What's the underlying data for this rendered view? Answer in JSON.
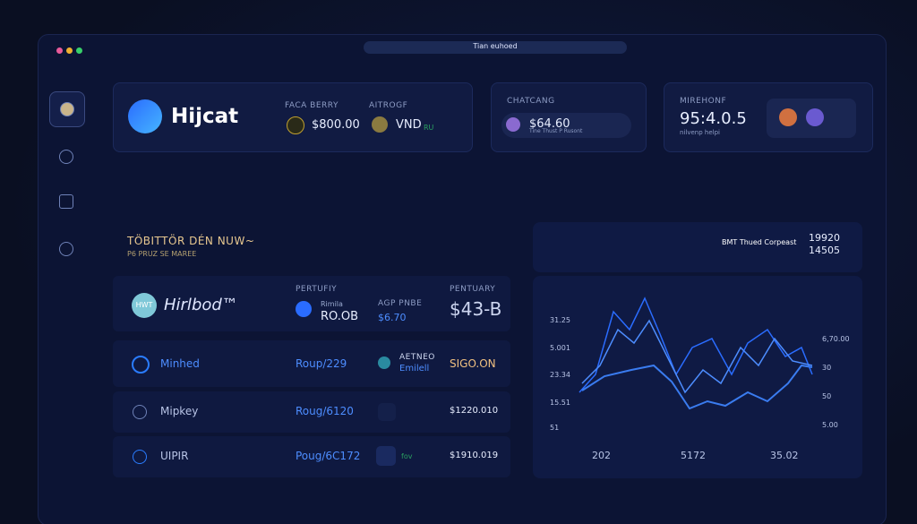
{
  "window": {
    "title": "Tian euhoed"
  },
  "cards": [
    {
      "brand": "Hijcat",
      "label_a": "FACA BERRY",
      "value_a": "$800.00",
      "label_b": "AITROGF",
      "value_b": "VND",
      "tag_b": "RU"
    },
    {
      "label": "CHATCANG",
      "value": "$64.60",
      "note": "Tine Thust P Rusont"
    },
    {
      "label": "MIREHONF",
      "value": "95:4.0.5",
      "note": "nilvenp helpi"
    }
  ],
  "section": {
    "title": "TÖBITTÖR DÉN NUW~",
    "subtitle": "P6 PRUZ SE MAREE"
  },
  "table": {
    "header": {
      "logo": "HWT",
      "brand": "Hirlbod™",
      "col1_label": "PERTUFIY",
      "col1_name": "Rimila",
      "col1_value": "RO.OB",
      "col2_label": "AGP PNBE",
      "col2_value": "$6.70",
      "col3_label": "PENTUARY",
      "col3_value": "$43-B"
    },
    "rows": [
      {
        "name": "Minhed",
        "route": "Roup/229",
        "meta_a": "AETNEO",
        "meta_b": "Emilell",
        "amount": "SIGO.ON"
      },
      {
        "name": "Mipkey",
        "route": "Roug/6120",
        "amount": "$1220.010"
      },
      {
        "name": "UIPIR",
        "route": "Poug/6C172",
        "meta_a": "fov",
        "amount": "$1910.019"
      }
    ]
  },
  "panel": {
    "title": "BMT Thued Corpeast",
    "value_a": "19920",
    "value_b": "14505",
    "left_axis": [
      "31.25",
      "5.001",
      "23.34",
      "15.51",
      "51"
    ],
    "right_axis": [
      "6,70.00",
      "30",
      "50",
      "5.00"
    ],
    "bottom_axis": [
      "202",
      "5172",
      "35.02"
    ]
  }
}
